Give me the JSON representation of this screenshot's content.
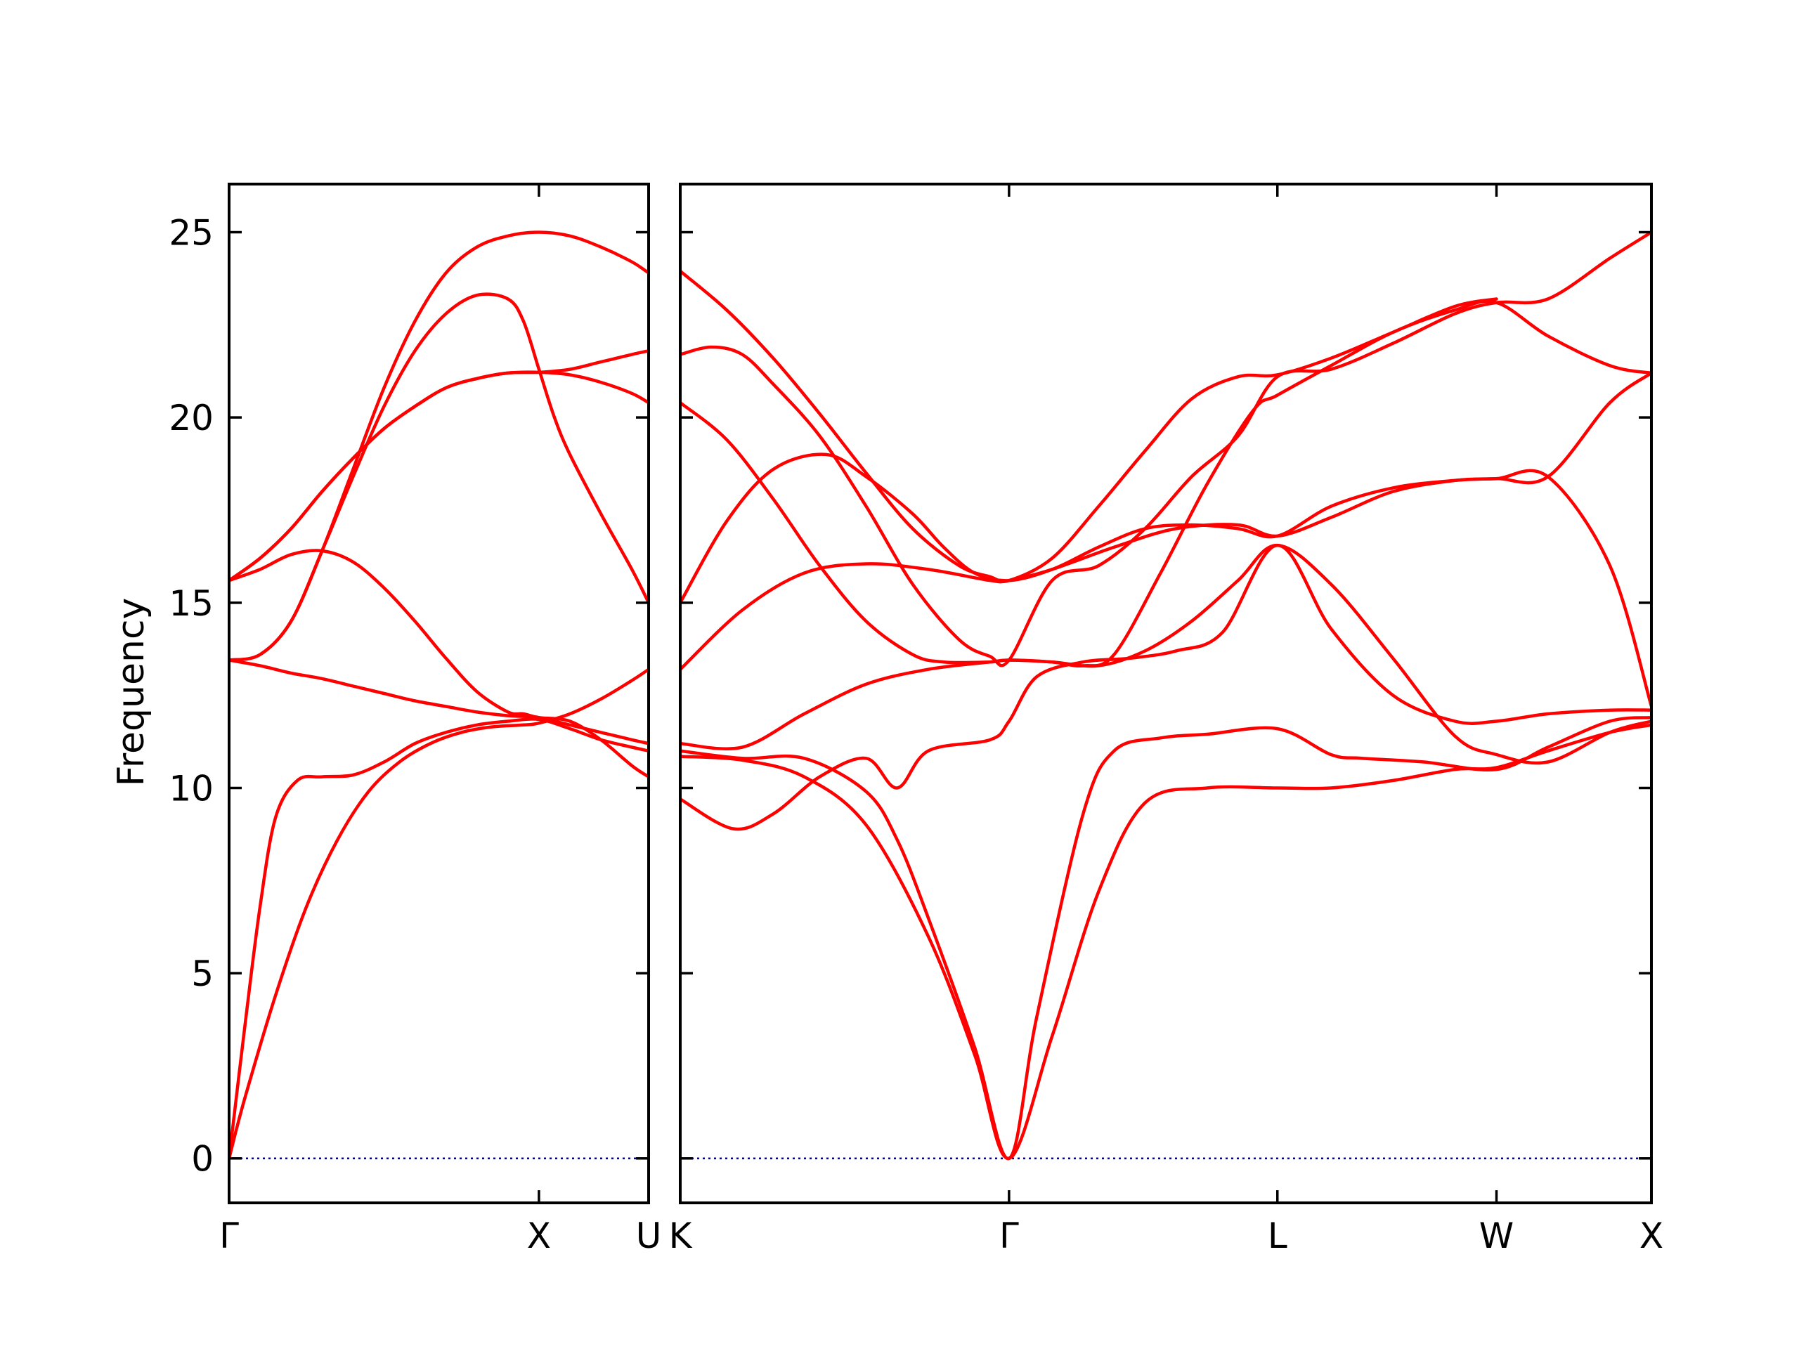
{
  "chart_data": {
    "type": "line",
    "ylabel": "Frequency",
    "ylim": [
      -1.2,
      26.3
    ],
    "yticks": [
      0,
      5,
      10,
      15,
      20,
      25
    ],
    "grid": false,
    "band_color": "#ff0000",
    "zero_line_color": "#00008b",
    "panels": [
      {
        "xticks": [
          {
            "label": "Γ",
            "x": 0.0
          },
          {
            "label": "X",
            "x": 1.0
          },
          {
            "label": "U",
            "x": 1.354
          }
        ],
        "xlim": [
          0.0,
          1.354
        ],
        "series": [
          {
            "x": [
              0.0,
              0.05,
              0.15,
              0.25,
              0.35,
              0.45,
              0.55,
              0.65,
              0.75,
              0.85,
              0.95,
              1.0,
              1.1,
              1.2,
              1.3,
              1.354
            ],
            "y": [
              0.0,
              1.6,
              4.4,
              6.8,
              8.6,
              9.9,
              10.7,
              11.2,
              11.5,
              11.65,
              11.7,
              11.75,
              12.0,
              12.4,
              12.9,
              13.2
            ]
          },
          {
            "x": [
              0.0,
              0.05,
              0.1,
              0.15,
              0.22,
              0.3,
              0.4,
              0.5,
              0.6,
              0.7,
              0.8,
              0.9,
              1.0,
              1.1,
              1.2,
              1.3,
              1.354
            ],
            "y": [
              0.0,
              3.5,
              6.8,
              9.2,
              10.2,
              10.3,
              10.35,
              10.7,
              11.2,
              11.5,
              11.7,
              11.8,
              11.85,
              11.6,
              11.3,
              11.1,
              11.0
            ]
          },
          {
            "x": [
              0.0,
              0.1,
              0.2,
              0.3,
              0.4,
              0.5,
              0.6,
              0.7,
              0.8,
              0.9,
              1.0,
              1.1,
              1.2,
              1.3,
              1.354
            ],
            "y": [
              13.45,
              13.3,
              13.1,
              12.95,
              12.75,
              12.55,
              12.35,
              12.2,
              12.05,
              11.95,
              11.9,
              11.7,
              11.5,
              11.3,
              11.2
            ]
          },
          {
            "x": [
              0.0,
              0.1,
              0.2,
              0.3,
              0.4,
              0.5,
              0.6,
              0.7,
              0.8,
              0.9,
              0.95,
              1.0,
              1.1,
              1.2,
              1.3,
              1.354
            ],
            "y": [
              15.6,
              15.9,
              16.3,
              16.4,
              16.1,
              15.4,
              14.5,
              13.5,
              12.6,
              12.05,
              12.0,
              11.9,
              11.8,
              11.3,
              10.6,
              10.3
            ]
          },
          {
            "x": [
              0.0,
              0.1,
              0.2,
              0.3,
              0.4,
              0.5,
              0.6,
              0.7,
              0.8,
              0.9,
              0.95,
              1.0,
              1.05,
              1.1,
              1.2,
              1.3,
              1.354
            ],
            "y": [
              13.45,
              13.6,
              14.5,
              16.4,
              18.4,
              20.3,
              21.8,
              22.8,
              23.3,
              23.2,
              22.6,
              21.3,
              20.0,
              19.0,
              17.4,
              15.9,
              15.0
            ]
          },
          {
            "x": [
              0.0,
              0.1,
              0.2,
              0.3,
              0.4,
              0.5,
              0.6,
              0.7,
              0.8,
              0.9,
              1.0,
              1.1,
              1.2,
              1.3,
              1.354
            ],
            "y": [
              15.6,
              16.2,
              17.0,
              18.0,
              18.9,
              19.7,
              20.3,
              20.8,
              21.05,
              21.2,
              21.22,
              21.3,
              21.5,
              21.7,
              21.8
            ]
          },
          {
            "x": [
              0.0,
              0.1,
              0.2,
              0.3,
              0.4,
              0.5,
              0.6,
              0.7,
              0.8,
              0.9,
              1.0,
              1.1,
              1.2,
              1.3,
              1.354
            ],
            "y": [
              15.6,
              16.2,
              17.0,
              18.0,
              18.9,
              19.7,
              20.3,
              20.8,
              21.05,
              21.2,
              21.22,
              21.15,
              20.95,
              20.65,
              20.4
            ]
          },
          {
            "x": [
              0.0,
              0.1,
              0.2,
              0.3,
              0.4,
              0.5,
              0.6,
              0.7,
              0.8,
              0.9,
              1.0,
              1.1,
              1.2,
              1.3,
              1.354
            ],
            "y": [
              13.45,
              13.6,
              14.5,
              16.4,
              18.6,
              20.8,
              22.6,
              23.9,
              24.6,
              24.9,
              25.0,
              24.9,
              24.6,
              24.2,
              23.9
            ]
          }
        ]
      },
      {
        "xticks": [
          {
            "label": "K",
            "x": 0.0
          },
          {
            "label": "Γ",
            "x": 1.061
          },
          {
            "label": "L",
            "x": 1.927
          },
          {
            "label": "W",
            "x": 2.634
          },
          {
            "label": "X",
            "x": 3.134
          }
        ],
        "xlim": [
          0.0,
          3.134
        ],
        "series": [
          {
            "x": [
              0.0,
              0.2,
              0.4,
              0.6,
              0.8,
              0.95,
              1.061,
              1.2,
              1.35,
              1.5,
              1.7,
              1.927,
              2.1,
              2.3,
              2.5,
              2.634,
              2.8,
              3.0,
              3.134
            ],
            "y": [
              10.85,
              10.75,
              10.3,
              9.0,
              6.0,
              2.8,
              0.0,
              3.3,
              7.2,
              9.6,
              10.0,
              10.0,
              10.0,
              10.2,
              10.5,
              10.55,
              11.0,
              11.5,
              11.7
            ]
          },
          {
            "x": [
              0.0,
              0.2,
              0.4,
              0.6,
              0.7,
              0.8,
              0.95,
              1.061,
              1.15,
              1.3,
              1.4,
              1.55,
              1.7,
              1.927,
              2.1,
              2.2,
              2.4,
              2.634,
              2.8,
              3.0,
              3.134
            ],
            "y": [
              11.0,
              10.8,
              10.8,
              9.9,
              8.6,
              6.5,
              3.0,
              0.0,
              3.8,
              9.3,
              11.0,
              11.35,
              11.45,
              11.6,
              10.9,
              10.8,
              10.7,
              10.5,
              11.1,
              11.8,
              11.9
            ]
          },
          {
            "x": [
              0.0,
              0.17,
              0.3,
              0.45,
              0.6,
              0.7,
              0.8,
              1.0,
              1.061,
              1.15,
              1.3,
              1.45,
              1.6,
              1.75,
              1.927,
              2.1,
              2.3,
              2.5,
              2.634,
              2.8,
              3.0,
              3.134
            ],
            "y": [
              9.7,
              8.9,
              9.3,
              10.3,
              10.8,
              10.0,
              11.0,
              11.3,
              11.8,
              13.0,
              13.4,
              13.5,
              13.7,
              14.2,
              16.55,
              14.3,
              12.5,
              11.8,
              11.8,
              12.0,
              12.1,
              12.1
            ]
          },
          {
            "x": [
              0.0,
              0.2,
              0.4,
              0.6,
              0.8,
              1.0,
              1.061,
              1.2,
              1.35,
              1.5,
              1.65,
              1.8,
              1.927,
              2.1,
              2.3,
              2.5,
              2.634,
              2.8,
              3.0,
              3.134
            ],
            "y": [
              11.2,
              11.1,
              12.0,
              12.8,
              13.2,
              13.4,
              13.45,
              13.4,
              13.3,
              13.7,
              14.5,
              15.6,
              16.55,
              15.5,
              13.5,
              11.4,
              10.9,
              10.7,
              11.5,
              11.8
            ]
          },
          {
            "x": [
              0.0,
              0.2,
              0.4,
              0.6,
              0.8,
              1.0,
              1.061,
              1.2,
              1.4,
              1.6,
              1.8,
              1.927,
              2.1,
              2.3,
              2.5,
              2.634,
              2.8,
              3.0,
              3.134
            ],
            "y": [
              13.2,
              14.8,
              15.8,
              16.05,
              15.9,
              15.6,
              15.6,
              15.9,
              16.5,
              17.0,
              17.1,
              16.8,
              17.3,
              18.0,
              18.3,
              18.35,
              18.4,
              20.4,
              21.2
            ]
          },
          {
            "x": [
              0.0,
              0.15,
              0.3,
              0.47,
              0.6,
              0.75,
              0.85,
              0.95,
              1.061,
              1.2,
              1.35,
              1.5,
              1.65,
              1.8,
              1.927,
              2.1,
              2.3,
              2.5,
              2.634,
              2.8,
              3.0,
              3.134
            ],
            "y": [
              15.0,
              17.2,
              18.6,
              19.0,
              18.4,
              17.4,
              16.5,
              15.8,
              15.6,
              15.9,
              16.5,
              17.0,
              17.1,
              17.0,
              16.8,
              17.6,
              18.1,
              18.3,
              18.35,
              18.4,
              16.0,
              12.2
            ]
          },
          {
            "x": [
              0.0,
              0.15,
              0.3,
              0.45,
              0.6,
              0.75,
              0.85,
              1.0,
              1.061,
              1.2,
              1.3,
              1.4,
              1.55,
              1.7,
              1.85,
              1.927,
              2.1,
              2.3,
              2.5,
              2.634,
              2.8,
              3.0,
              3.134
            ],
            "y": [
              20.4,
              19.4,
              17.8,
              16.0,
              14.5,
              13.6,
              13.4,
              13.4,
              13.45,
              13.4,
              13.3,
              13.6,
              15.8,
              18.2,
              20.2,
              20.6,
              21.4,
              22.3,
              22.9,
              23.1,
              22.2,
              21.4,
              21.2
            ]
          },
          {
            "x": [
              0.0,
              0.1,
              0.2,
              0.3,
              0.45,
              0.6,
              0.75,
              0.9,
              1.0,
              1.061,
              1.2,
              1.35,
              1.5,
              1.65,
              1.8,
              1.927,
              2.1,
              2.3,
              2.5,
              2.634,
              2.8,
              3.0,
              3.134
            ],
            "y": [
              21.7,
              21.9,
              21.7,
              20.9,
              19.5,
              17.6,
              15.5,
              14.0,
              13.55,
              13.45,
              15.6,
              16.0,
              17.0,
              18.4,
              19.5,
              21.1,
              21.3,
              22.0,
              22.8,
              23.1,
              23.2,
              24.3,
              25.0
            ]
          },
          {
            "x": [
              0.0,
              0.15,
              0.3,
              0.45,
              0.6,
              0.75,
              0.9,
              1.0,
              1.061,
              1.2,
              1.35,
              1.5,
              1.65,
              1.8,
              1.927,
              2.1,
              2.3,
              2.5,
              2.634
            ],
            "y": [
              23.95,
              22.9,
              21.6,
              20.1,
              18.5,
              17.0,
              16.0,
              15.7,
              15.6,
              16.2,
              17.6,
              19.1,
              20.5,
              21.1,
              21.15,
              21.6,
              22.3,
              23.0,
              23.2
            ]
          }
        ]
      }
    ]
  }
}
